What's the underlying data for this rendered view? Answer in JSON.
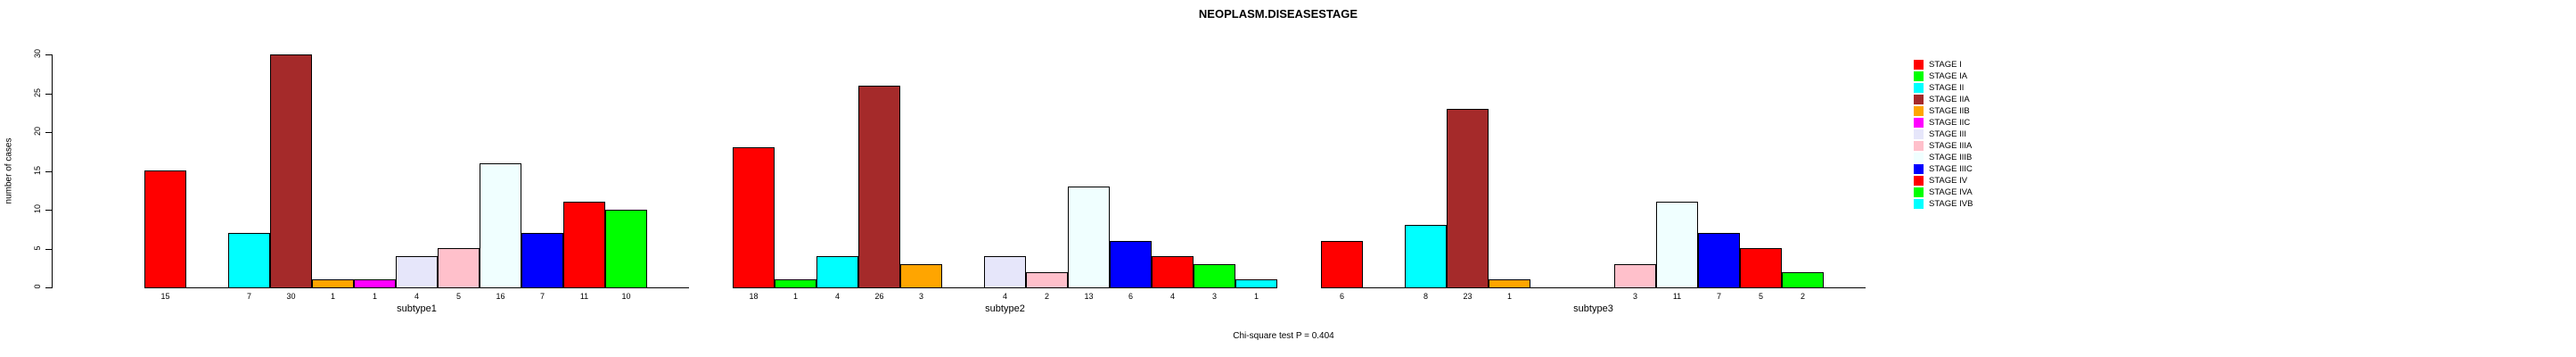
{
  "title": "NEOPLASM.DISEASESTAGE",
  "footer_note": "Chi-square test P = 0.404",
  "y_axis": {
    "label": "number of cases",
    "ticks": [
      0,
      5,
      10,
      15,
      20,
      25,
      30
    ]
  },
  "legend": {
    "entries": [
      "STAGE I",
      "STAGE IA",
      "STAGE II",
      "STAGE IIA",
      "STAGE IIB",
      "STAGE IIC",
      "STAGE III",
      "STAGE IIIA",
      "STAGE IIIB",
      "STAGE IIIC",
      "STAGE IV",
      "STAGE IVA",
      "STAGE IVB"
    ]
  },
  "chart_data": {
    "type": "bar",
    "title": "NEOPLASM.DISEASESTAGE",
    "xlabel": "",
    "ylabel": "number of cases",
    "ylim": [
      0,
      30
    ],
    "grid": false,
    "legend_position": "top-right",
    "annotation": "Chi-square test P = 0.404",
    "categories": [
      "subtype1",
      "subtype2",
      "subtype3"
    ],
    "stages": [
      {
        "name": "STAGE I",
        "color": "#FF0000"
      },
      {
        "name": "STAGE IA",
        "color": "#00FF00"
      },
      {
        "name": "STAGE II",
        "color": "#00FFFF"
      },
      {
        "name": "STAGE IIA",
        "color": "#A52A2A"
      },
      {
        "name": "STAGE IIB",
        "color": "#FFA500"
      },
      {
        "name": "STAGE IIC",
        "color": "#FF00FF"
      },
      {
        "name": "STAGE III",
        "color": "#E6E6FA"
      },
      {
        "name": "STAGE IIIA",
        "color": "#FFC0CB"
      },
      {
        "name": "STAGE IIIB",
        "color": "#F0FFFF"
      },
      {
        "name": "STAGE IIIC",
        "color": "#0000FF"
      },
      {
        "name": "STAGE IV",
        "color": "#FF0000"
      },
      {
        "name": "STAGE IVA",
        "color": "#00FF00"
      },
      {
        "name": "STAGE IVB",
        "color": "#00FFFF"
      }
    ],
    "groups": [
      {
        "label": "subtype1",
        "values": [
          15,
          0,
          7,
          30,
          1,
          1,
          4,
          5,
          16,
          7,
          11,
          10,
          0
        ]
      },
      {
        "label": "subtype2",
        "values": [
          18,
          1,
          4,
          26,
          3,
          0,
          4,
          2,
          13,
          6,
          4,
          3,
          1
        ]
      },
      {
        "label": "subtype3",
        "values": [
          6,
          0,
          8,
          23,
          1,
          0,
          0,
          3,
          11,
          7,
          5,
          2,
          0
        ]
      }
    ]
  }
}
